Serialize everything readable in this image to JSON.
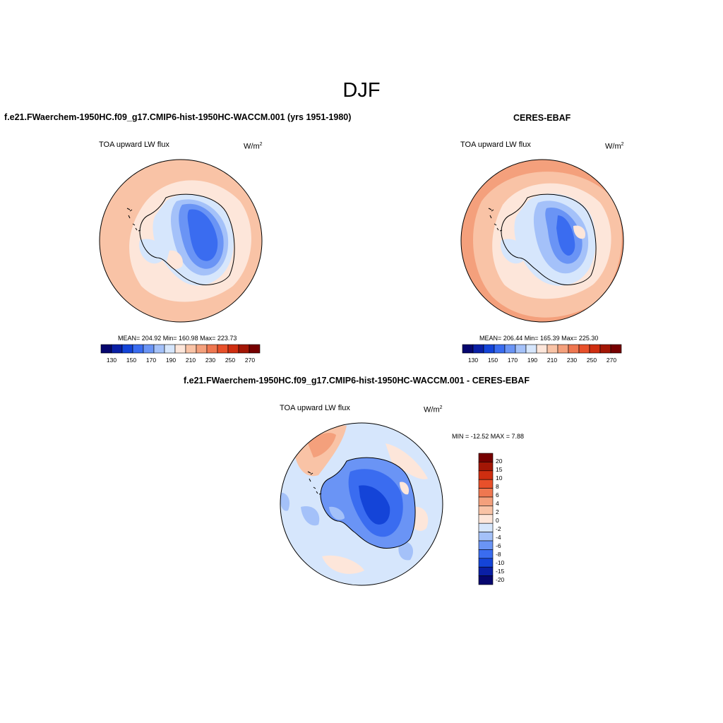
{
  "main_title": "DJF",
  "panels": [
    {
      "title": "f.e21.FWaerchem-1950HC.f09_g17.CMIP6-hist-1950HC-WACCM.001 (yrs 1951-1980)",
      "variable": "TOA upward LW flux",
      "units_base": "W/m",
      "units_exp": "2",
      "stats": "MEAN= 204.92  Min= 160.98  Max= 223.73",
      "colorbar_labels": [
        "130",
        "150",
        "170",
        "190",
        "210",
        "230",
        "250",
        "270"
      ]
    },
    {
      "title": "CERES-EBAF",
      "variable": "TOA upward LW flux",
      "units_base": "W/m",
      "units_exp": "2",
      "stats": "MEAN= 206.44  Min= 165.39  Max= 225.30",
      "colorbar_labels": [
        "130",
        "150",
        "170",
        "190",
        "210",
        "230",
        "250",
        "270"
      ]
    },
    {
      "title": "f.e21.FWaerchem-1950HC.f09_g17.CMIP6-hist-1950HC-WACCM.001 - CERES-EBAF",
      "variable": "TOA upward LW flux",
      "units_base": "W/m",
      "units_exp": "2",
      "stats": "MIN = -12.52 MAX =   7.88",
      "colorbar_labels": [
        "20",
        "15",
        "10",
        "8",
        "6",
        "4",
        "2",
        "0",
        "-2",
        "-4",
        "-6",
        "-8",
        "-10",
        "-15",
        "-20"
      ]
    }
  ],
  "colors": {
    "abs_scale": [
      "#06066e",
      "#0a1fa5",
      "#1444d8",
      "#3a6cf0",
      "#6a94f5",
      "#a4c1f9",
      "#d6e6fc",
      "#fde6da",
      "#f9c3a6",
      "#f4a07c",
      "#ef7750",
      "#e8502a",
      "#cf2e10",
      "#a31605",
      "#760000"
    ],
    "diff_scale": [
      "#760000",
      "#a31605",
      "#cf2e10",
      "#e8502a",
      "#ef7750",
      "#f4a07c",
      "#f9c3a6",
      "#fde6da",
      "#d6e6fc",
      "#a4c1f9",
      "#6a94f5",
      "#3a6cf0",
      "#1444d8",
      "#0a1fa5",
      "#06066e"
    ]
  }
}
